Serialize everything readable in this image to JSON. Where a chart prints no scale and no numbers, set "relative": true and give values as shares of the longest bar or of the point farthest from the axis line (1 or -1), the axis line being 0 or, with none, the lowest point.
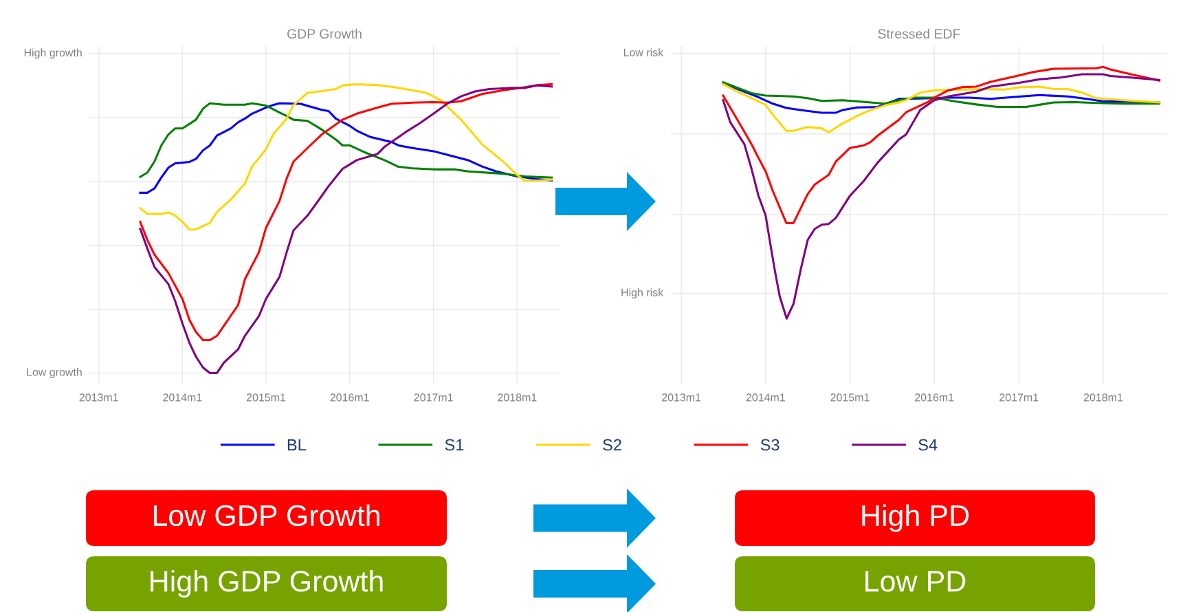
{
  "chart_data": [
    {
      "type": "line",
      "title": "GDP Growth",
      "relative": true,
      "grid": "x",
      "legend": "bottom",
      "line_style": "solid",
      "marker": "none",
      "ylim": [
        -0.037,
        1.132
      ],
      "xlim": [
        "2012-11-21",
        "2018-07-05"
      ],
      "xticks": [
        {
          "value": "2013-01",
          "label": "2013m1"
        },
        {
          "value": "2014-01",
          "label": "2014m1"
        },
        {
          "value": "2015-01",
          "label": "2015m1"
        },
        {
          "value": "2016-01",
          "label": "2016m1"
        },
        {
          "value": "2017-01",
          "label": "2017m1"
        },
        {
          "value": "2018-01",
          "label": "2018m1"
        }
      ],
      "ref_lines": [
        {
          "axis": "y",
          "value": 0,
          "label": "Low growth",
          "color": "#ebebeb"
        },
        {
          "axis": "y",
          "value": 0.22,
          "color": "#ebebeb"
        },
        {
          "axis": "y",
          "value": 0.442,
          "color": "#ebebeb"
        },
        {
          "axis": "y",
          "value": 0.662,
          "color": "#ebebeb"
        },
        {
          "axis": "y",
          "value": 0.885,
          "color": "#ebebeb"
        },
        {
          "axis": "y",
          "value": 1.106,
          "label": "High growth",
          "color": "#ebebeb"
        }
      ],
      "series": [
        {
          "name": "BL",
          "color": "#0000ff",
          "x": [
            "2013-07",
            "2013-08",
            "2013-09",
            "2013-10",
            "2013-11",
            "2013-12",
            "2014-02",
            "2014-03",
            "2014-04",
            "2014-05",
            "2014-06",
            "2014-08",
            "2014-09",
            "2014-10",
            "2014-11",
            "2015-01",
            "2015-02",
            "2015-03",
            "2015-06",
            "2015-09",
            "2015-10",
            "2015-11",
            "2016-01",
            "2016-02",
            "2016-04",
            "2016-07",
            "2016-08",
            "2016-10",
            "2017-01",
            "2017-03",
            "2017-06",
            "2017-08",
            "2017-10",
            "2018-01",
            "2018-04",
            "2018-06"
          ],
          "values": [
            0.624,
            0.624,
            0.639,
            0.677,
            0.711,
            0.726,
            0.731,
            0.741,
            0.771,
            0.788,
            0.822,
            0.847,
            0.868,
            0.881,
            0.898,
            0.919,
            0.928,
            0.934,
            0.932,
            0.911,
            0.907,
            0.881,
            0.856,
            0.839,
            0.817,
            0.8,
            0.788,
            0.779,
            0.768,
            0.756,
            0.737,
            0.715,
            0.698,
            0.681,
            0.671,
            0.667
          ]
        },
        {
          "name": "S1",
          "color": "#008000",
          "x": [
            "2013-07",
            "2013-08",
            "2013-09",
            "2013-10",
            "2013-11",
            "2013-12",
            "2014-01",
            "2014-03",
            "2014-04",
            "2014-05",
            "2014-07",
            "2014-10",
            "2014-11",
            "2015-01",
            "2015-03",
            "2015-04",
            "2015-05",
            "2015-07",
            "2015-09",
            "2015-11",
            "2015-12",
            "2016-01",
            "2016-03",
            "2016-06",
            "2016-08",
            "2016-10",
            "2017-01",
            "2017-04",
            "2017-06",
            "2017-11",
            "2018-02",
            "2018-06"
          ],
          "values": [
            0.679,
            0.694,
            0.732,
            0.788,
            0.826,
            0.847,
            0.847,
            0.877,
            0.915,
            0.934,
            0.929,
            0.929,
            0.934,
            0.926,
            0.902,
            0.89,
            0.877,
            0.873,
            0.843,
            0.809,
            0.788,
            0.788,
            0.766,
            0.737,
            0.714,
            0.709,
            0.705,
            0.705,
            0.698,
            0.69,
            0.681,
            0.677
          ]
        },
        {
          "name": "S2",
          "color": "#ffd700",
          "x": [
            "2013-07",
            "2013-08",
            "2013-10",
            "2013-11",
            "2013-12",
            "2014-01",
            "2014-02",
            "2014-03",
            "2014-05",
            "2014-06",
            "2014-08",
            "2014-10",
            "2014-11",
            "2015-01",
            "2015-02",
            "2015-04",
            "2015-05",
            "2015-07",
            "2015-09",
            "2015-11",
            "2015-12",
            "2016-02",
            "2016-05",
            "2016-07",
            "2016-09",
            "2016-12",
            "2017-02",
            "2017-05",
            "2017-08",
            "2017-11",
            "2018-01",
            "2018-02",
            "2018-04",
            "2018-06"
          ],
          "values": [
            0.571,
            0.551,
            0.551,
            0.556,
            0.545,
            0.524,
            0.497,
            0.497,
            0.52,
            0.558,
            0.601,
            0.656,
            0.715,
            0.775,
            0.826,
            0.881,
            0.928,
            0.97,
            0.976,
            0.983,
            0.996,
            1.0,
            0.997,
            0.991,
            0.983,
            0.97,
            0.945,
            0.877,
            0.792,
            0.732,
            0.686,
            0.666,
            0.666,
            0.67
          ]
        },
        {
          "name": "S3",
          "color": "#ff0000",
          "x": [
            "2013-07",
            "2013-08",
            "2013-09",
            "2013-11",
            "2014-01",
            "2014-02",
            "2014-03",
            "2014-04",
            "2014-05",
            "2014-06",
            "2014-07",
            "2014-09",
            "2014-10",
            "2014-12",
            "2015-01",
            "2015-03",
            "2015-04",
            "2015-05",
            "2015-07",
            "2015-09",
            "2015-10",
            "2015-12",
            "2016-02",
            "2016-05",
            "2016-07",
            "2016-10",
            "2017-01",
            "2017-03",
            "2017-05",
            "2017-08",
            "2017-11",
            "2018-02",
            "2018-04",
            "2018-06"
          ],
          "values": [
            0.523,
            0.461,
            0.41,
            0.346,
            0.257,
            0.184,
            0.142,
            0.114,
            0.114,
            0.129,
            0.163,
            0.235,
            0.325,
            0.418,
            0.503,
            0.596,
            0.673,
            0.732,
            0.779,
            0.826,
            0.843,
            0.877,
            0.898,
            0.919,
            0.932,
            0.936,
            0.938,
            0.936,
            0.941,
            0.966,
            0.979,
            0.989,
            0.997,
            1.0
          ]
        },
        {
          "name": "S4",
          "color": "#800080",
          "x": [
            "2013-07",
            "2013-08",
            "2013-09",
            "2013-11",
            "2013-12",
            "2014-01",
            "2014-02",
            "2014-03",
            "2014-04",
            "2014-05",
            "2014-06",
            "2014-07",
            "2014-09",
            "2014-10",
            "2014-12",
            "2015-01",
            "2015-03",
            "2015-04",
            "2015-05",
            "2015-07",
            "2015-09",
            "2015-10",
            "2015-12",
            "2016-02",
            "2016-05",
            "2016-06",
            "2016-09",
            "2016-11",
            "2017-01",
            "2017-03",
            "2017-05",
            "2017-07",
            "2017-09",
            "2017-12",
            "2018-02",
            "2018-04",
            "2018-06"
          ],
          "values": [
            0.499,
            0.431,
            0.367,
            0.308,
            0.248,
            0.172,
            0.104,
            0.057,
            0.019,
            0,
            0,
            0.036,
            0.082,
            0.129,
            0.197,
            0.257,
            0.333,
            0.418,
            0.494,
            0.545,
            0.613,
            0.647,
            0.707,
            0.737,
            0.758,
            0.783,
            0.834,
            0.864,
            0.898,
            0.932,
            0.958,
            0.975,
            0.983,
            0.987,
            0.987,
            0.996,
            0.992
          ]
        }
      ]
    },
    {
      "type": "line",
      "title": "Stressed EDF",
      "relative": true,
      "grid": "x",
      "line_style": "solid",
      "marker": "none",
      "ylim": [
        -0.259,
        1.083
      ],
      "xlim": [
        "2012-11-17",
        "2018-10-05"
      ],
      "xticks": [
        {
          "value": "2013-01",
          "label": "2013m1"
        },
        {
          "value": "2014-01",
          "label": "2014m1"
        },
        {
          "value": "2015-01",
          "label": "2015m1"
        },
        {
          "value": "2016-01",
          "label": "2016m1"
        },
        {
          "value": "2017-01",
          "label": "2017m1"
        },
        {
          "value": "2018-01",
          "label": "2018m1"
        }
      ],
      "ref_lines": [
        {
          "axis": "y",
          "value": 0.1,
          "label": "High risk",
          "color": "#ebebeb"
        },
        {
          "axis": "y",
          "value": 0.414,
          "color": "#ebebeb"
        },
        {
          "axis": "y",
          "value": 0.734,
          "color": "#ebebeb"
        },
        {
          "axis": "y",
          "value": 1.054,
          "label": "Low risk",
          "color": "#ebebeb"
        }
      ],
      "series": [
        {
          "color": "#0000ff",
          "x": [
            "2013-07",
            "2013-10",
            "2013-12",
            "2014-02",
            "2014-04",
            "2014-06",
            "2014-09",
            "2014-11",
            "2014-12",
            "2015-02",
            "2015-05",
            "2015-08",
            "2015-11",
            "2016-03",
            "2016-06",
            "2016-09",
            "2017-01",
            "2017-04",
            "2017-08",
            "2017-11",
            "2018-01",
            "2018-04",
            "2018-09"
          ],
          "values": [
            0.935,
            0.902,
            0.88,
            0.854,
            0.837,
            0.829,
            0.818,
            0.818,
            0.829,
            0.839,
            0.841,
            0.873,
            0.875,
            0.878,
            0.878,
            0.873,
            0.882,
            0.888,
            0.883,
            0.872,
            0.863,
            0.863,
            0.859
          ]
        },
        {
          "color": "#008000",
          "x": [
            "2013-07",
            "2013-09",
            "2013-11",
            "2014-01",
            "2014-05",
            "2014-07",
            "2014-09",
            "2014-12",
            "2015-04",
            "2015-06",
            "2015-08",
            "2015-10",
            "2016-01",
            "2016-04",
            "2016-07",
            "2016-10",
            "2017-02",
            "2017-06",
            "2017-09",
            "2017-12",
            "2018-04",
            "2018-09"
          ],
          "values": [
            0.939,
            0.917,
            0.896,
            0.886,
            0.883,
            0.876,
            0.865,
            0.868,
            0.859,
            0.854,
            0.868,
            0.878,
            0.878,
            0.863,
            0.851,
            0.841,
            0.841,
            0.859,
            0.86,
            0.857,
            0.854,
            0.854
          ]
        },
        {
          "color": "#ffd700",
          "x": [
            "2013-07",
            "2013-09",
            "2013-11",
            "2014-01",
            "2014-02",
            "2014-04",
            "2014-05",
            "2014-07",
            "2014-09",
            "2014-10",
            "2014-12",
            "2015-02",
            "2015-04",
            "2015-06",
            "2015-08",
            "2015-09",
            "2015-11",
            "2016-01",
            "2016-04",
            "2016-08",
            "2016-11",
            "2017-01",
            "2017-04",
            "2017-06",
            "2017-08",
            "2017-10",
            "2017-12",
            "2018-04",
            "2018-09"
          ],
          "values": [
            0.932,
            0.902,
            0.876,
            0.849,
            0.81,
            0.746,
            0.746,
            0.761,
            0.756,
            0.74,
            0.776,
            0.805,
            0.829,
            0.847,
            0.859,
            0.868,
            0.898,
            0.907,
            0.909,
            0.912,
            0.91,
            0.919,
            0.922,
            0.912,
            0.912,
            0.898,
            0.876,
            0.868,
            0.859
          ]
        },
        {
          "color": "#ff0000",
          "x": [
            "2013-07",
            "2013-09",
            "2013-11",
            "2013-12",
            "2014-01",
            "2014-02",
            "2014-04",
            "2014-05",
            "2014-07",
            "2014-08",
            "2014-10",
            "2014-11",
            "2015-01",
            "2015-03",
            "2015-04",
            "2015-05",
            "2015-08",
            "2015-09",
            "2015-12",
            "2016-01",
            "2016-03",
            "2016-05",
            "2016-07",
            "2016-09",
            "2017-01",
            "2017-03",
            "2017-06",
            "2017-12",
            "2018-01",
            "2018-02",
            "2018-05",
            "2018-09"
          ],
          "values": [
            0.886,
            0.79,
            0.693,
            0.639,
            0.585,
            0.507,
            0.379,
            0.379,
            0.493,
            0.532,
            0.571,
            0.624,
            0.678,
            0.688,
            0.702,
            0.727,
            0.79,
            0.82,
            0.859,
            0.878,
            0.907,
            0.92,
            0.922,
            0.941,
            0.966,
            0.979,
            0.993,
            0.995,
            1.0,
            0.99,
            0.971,
            0.946
          ]
        },
        {
          "color": "#800080",
          "x": [
            "2013-07",
            "2013-08",
            "2013-10",
            "2013-11",
            "2013-12",
            "2014-01-01",
            "2014-01-22",
            "2014-02-11",
            "2014-03-03",
            "2014-04-02",
            "2014-05-02",
            "2014-06-02",
            "2014-07-02",
            "2014-08-01",
            "2014-09",
            "2014-10",
            "2014-11",
            "2015-01",
            "2015-03",
            "2015-05",
            "2015-08",
            "2015-09",
            "2015-11",
            "2016-01",
            "2016-03",
            "2016-07",
            "2016-09",
            "2017-01",
            "2017-04",
            "2017-07",
            "2017-10",
            "2018-01",
            "2018-02",
            "2018-05",
            "2018-09"
          ],
          "values": [
            0.868,
            0.78,
            0.693,
            0.595,
            0.488,
            0.41,
            0.293,
            0.185,
            0.088,
            0,
            0.059,
            0.195,
            0.312,
            0.356,
            0.373,
            0.376,
            0.4,
            0.488,
            0.546,
            0.62,
            0.712,
            0.732,
            0.829,
            0.868,
            0.883,
            0.902,
            0.922,
            0.937,
            0.951,
            0.958,
            0.971,
            0.971,
            0.964,
            0.958,
            0.948
          ]
        }
      ]
    },
    {
      "type": "other",
      "annotations": [
        "Low GDP Growth",
        "High PD",
        "High GDP Growth",
        "Low PD"
      ],
      "colors": [
        "#ff0000",
        "#ff0000",
        "#77a300",
        "#77a300"
      ]
    }
  ]
}
